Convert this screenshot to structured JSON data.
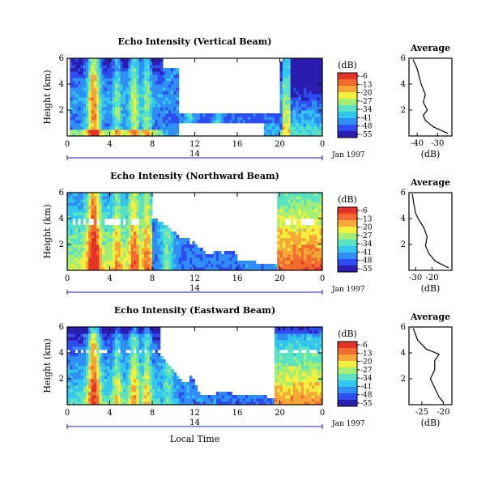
{
  "chart_data": [
    {
      "type": "heatmap",
      "title": "Echo Intensity (Vertical Beam)",
      "ylabel": "Height (km)",
      "ylim": [
        0,
        6
      ],
      "yticks": [
        "2",
        "4",
        "6"
      ],
      "xlim": [
        0,
        24
      ],
      "xticks": [
        "0",
        "4",
        "8",
        "12",
        "16",
        "20",
        "0"
      ],
      "date_marker": "14",
      "date_label": "Jan 1997",
      "colorbar": {
        "label": "(dB)",
        "ticks": [
          "-6",
          "-13",
          "-20",
          "-27",
          "-34",
          "-41",
          "-48",
          "-55"
        ]
      },
      "scale": "vert",
      "average": {
        "title": "Average",
        "xlabel": "(dB)",
        "xlim": [
          -44,
          -23
        ],
        "xticks": [
          {
            "v": -40,
            "t": "-40"
          },
          {
            "v": -30,
            "t": "-30"
          }
        ],
        "yticks": [
          "2",
          "4",
          "6"
        ],
        "profile": [
          [
            -25,
            0.2
          ],
          [
            -32,
            0.7
          ],
          [
            -36,
            1.2
          ],
          [
            -37,
            1.6
          ],
          [
            -35,
            2.0
          ],
          [
            -37,
            2.6
          ],
          [
            -36,
            3.2
          ],
          [
            -38,
            4.0
          ],
          [
            -39,
            4.6
          ],
          [
            -40,
            5.2
          ],
          [
            -42,
            5.9
          ]
        ]
      }
    },
    {
      "type": "heatmap",
      "title": "Echo Intensity (Northward Beam)",
      "ylabel": "Height (km)",
      "ylim": [
        0,
        6
      ],
      "yticks": [
        "2",
        "4",
        "6"
      ],
      "xlim": [
        0,
        24
      ],
      "xticks": [
        "0",
        "4",
        "8",
        "12",
        "16",
        "20",
        "0"
      ],
      "date_marker": "14",
      "date_label": "Jan 1997",
      "colorbar": {
        "label": "(dB)",
        "ticks": [
          "-6",
          "-13",
          "-20",
          "-27",
          "-34",
          "-41",
          "-48",
          "-55"
        ]
      },
      "scale": "north",
      "average": {
        "title": "Average",
        "xlabel": "(dB)",
        "xlim": [
          -34,
          -8
        ],
        "xticks": [
          {
            "v": -30,
            "t": "-30"
          },
          {
            "v": -20,
            "t": "-20"
          }
        ],
        "yticks": [
          "2",
          "4",
          "6"
        ],
        "profile": [
          [
            -10,
            0.2
          ],
          [
            -18,
            0.7
          ],
          [
            -22,
            1.3
          ],
          [
            -24,
            1.9
          ],
          [
            -23,
            2.6
          ],
          [
            -25,
            3.3
          ],
          [
            -28,
            3.9
          ],
          [
            -30,
            4.4
          ],
          [
            -31,
            5.1
          ],
          [
            -32,
            5.9
          ]
        ]
      }
    },
    {
      "type": "heatmap",
      "title": "Echo Intensity (Eastward Beam)",
      "ylabel": "Height (km)",
      "ylim": [
        0,
        6
      ],
      "yticks": [
        "2",
        "4",
        "6"
      ],
      "xlim": [
        0,
        24
      ],
      "xticks": [
        "0",
        "4",
        "8",
        "12",
        "16",
        "20",
        "0"
      ],
      "date_marker": "14",
      "date_label": "Jan 1997",
      "colorbar": {
        "label": "(dB)",
        "ticks": [
          "-6",
          "-13",
          "-20",
          "-27",
          "-34",
          "-41",
          "-48",
          "-55"
        ]
      },
      "scale": "east",
      "xlabel": "Local Time",
      "average": {
        "title": "Average",
        "xlabel": "(dB)",
        "xlim": [
          -28,
          -18
        ],
        "xticks": [
          {
            "v": -25,
            "t": "-25"
          },
          {
            "v": -20,
            "t": "-20"
          }
        ],
        "yticks": [
          "2",
          "4",
          "6"
        ],
        "profile": [
          [
            -20,
            0.2
          ],
          [
            -21,
            0.6
          ],
          [
            -22,
            1.3
          ],
          [
            -23,
            2.0
          ],
          [
            -22,
            2.7
          ],
          [
            -22,
            3.4
          ],
          [
            -21,
            3.9
          ],
          [
            -24,
            4.3
          ],
          [
            -26,
            5.0
          ],
          [
            -27,
            5.9
          ]
        ]
      }
    }
  ],
  "colors": {
    "palette": [
      "#2a1db0",
      "#2d4df0",
      "#2f8ff5",
      "#33c6ee",
      "#59e2c4",
      "#a3ee74",
      "#f2ef3f",
      "#f7a736",
      "#f26c2f",
      "#e53328"
    ],
    "axis_blue": "#1a1ab8"
  }
}
